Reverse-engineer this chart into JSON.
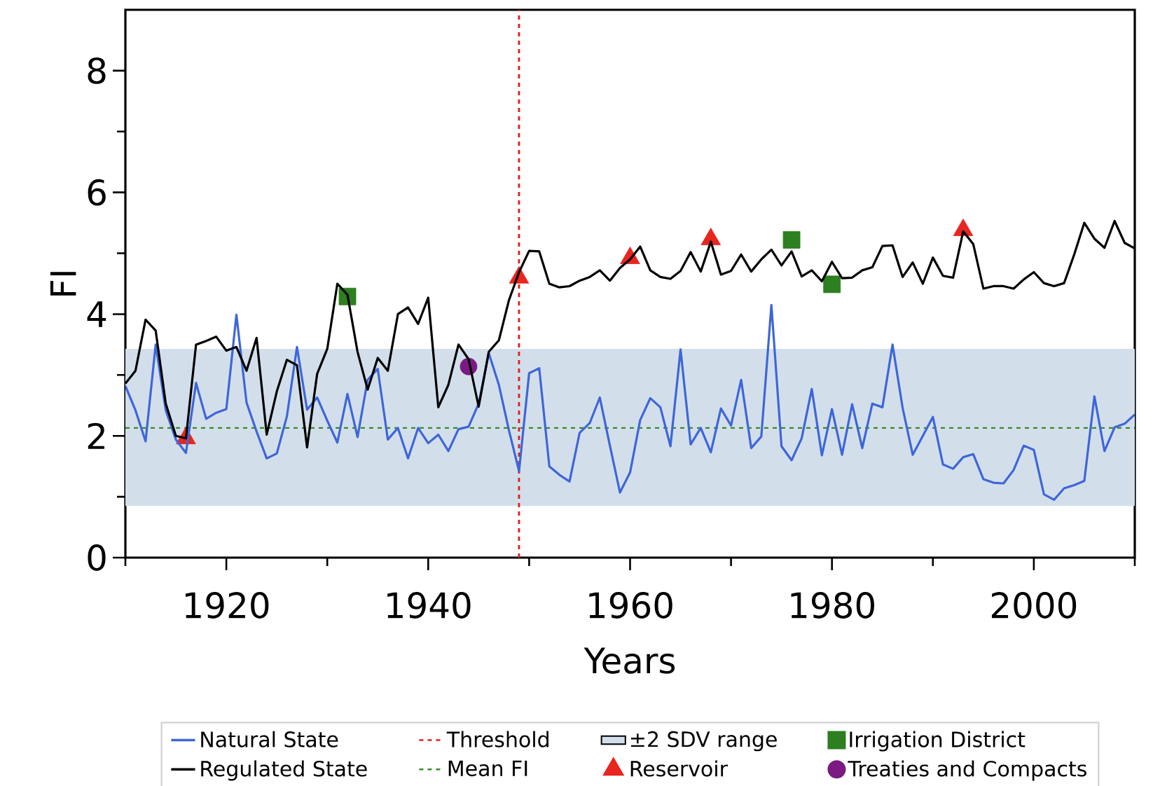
{
  "chart_data": {
    "type": "line",
    "xlabel": "Years",
    "ylabel": "FI",
    "xlim": [
      1910,
      2010
    ],
    "ylim": [
      0,
      9
    ],
    "xticks": [
      {
        "value": 1910,
        "label": null
      },
      1920,
      {
        "value": 1930,
        "label": null
      },
      1940,
      {
        "value": 1950,
        "label": null
      },
      1960,
      {
        "value": 1970,
        "label": null
      },
      1980,
      {
        "value": 1990,
        "label": null
      },
      2000,
      {
        "value": 2010,
        "label": null
      }
    ],
    "yticks": [
      0,
      {
        "value": 1,
        "label": null
      },
      2,
      {
        "value": 3,
        "label": null
      },
      4,
      {
        "value": 5,
        "label": null
      },
      6,
      {
        "value": 7,
        "label": null
      },
      8
    ],
    "x": [
      1910,
      1911,
      1912,
      1913,
      1914,
      1915,
      1916,
      1917,
      1918,
      1919,
      1920,
      1921,
      1922,
      1923,
      1924,
      1925,
      1926,
      1927,
      1928,
      1929,
      1930,
      1931,
      1932,
      1933,
      1934,
      1935,
      1936,
      1937,
      1938,
      1939,
      1940,
      1941,
      1942,
      1943,
      1944,
      1945,
      1946,
      1947,
      1948,
      1949,
      1950,
      1951,
      1952,
      1953,
      1954,
      1955,
      1956,
      1957,
      1958,
      1959,
      1960,
      1961,
      1962,
      1963,
      1964,
      1965,
      1966,
      1967,
      1968,
      1969,
      1970,
      1971,
      1972,
      1973,
      1974,
      1975,
      1976,
      1977,
      1978,
      1979,
      1980,
      1981,
      1982,
      1983,
      1984,
      1985,
      1986,
      1987,
      1988,
      1989,
      1990,
      1991,
      1992,
      1993,
      1994,
      1995,
      1996,
      1997,
      1998,
      1999,
      2000,
      2001,
      2002,
      2003,
      2004,
      2005,
      2006,
      2007,
      2008,
      2009,
      2010
    ],
    "series": [
      {
        "name": "Natural State",
        "color": "#3f66d8",
        "values": [
          2.82,
          2.42,
          1.91,
          3.5,
          2.42,
          1.94,
          1.72,
          2.87,
          2.28,
          2.38,
          2.44,
          3.99,
          2.55,
          2.07,
          1.63,
          1.71,
          2.32,
          3.46,
          2.43,
          2.63,
          2.25,
          1.89,
          2.69,
          1.98,
          2.92,
          3.1,
          1.94,
          2.13,
          1.63,
          2.13,
          1.88,
          2.02,
          1.75,
          2.11,
          2.15,
          2.53,
          3.36,
          2.84,
          2.09,
          1.42,
          3.03,
          3.11,
          1.5,
          1.36,
          1.25,
          2.05,
          2.21,
          2.63,
          1.84,
          1.07,
          1.4,
          2.26,
          2.62,
          2.47,
          1.83,
          3.42,
          1.86,
          2.13,
          1.73,
          2.45,
          2.17,
          2.92,
          1.8,
          1.99,
          4.15,
          1.83,
          1.6,
          1.96,
          2.77,
          1.68,
          2.44,
          1.69,
          2.52,
          1.8,
          2.53,
          2.47,
          3.5,
          2.46,
          1.69,
          2.0,
          2.31,
          1.53,
          1.46,
          1.65,
          1.7,
          1.29,
          1.23,
          1.22,
          1.44,
          1.84,
          1.77,
          1.04,
          0.95,
          1.14,
          1.19,
          1.26,
          2.65,
          1.75,
          2.14,
          2.2,
          2.35
        ]
      },
      {
        "name": "Regulated State",
        "color": "#000000",
        "values": [
          2.86,
          3.07,
          3.91,
          3.73,
          2.53,
          2.0,
          1.96,
          3.5,
          3.56,
          3.63,
          3.4,
          3.46,
          3.07,
          3.61,
          2.02,
          2.73,
          3.25,
          3.16,
          1.81,
          3.02,
          3.43,
          4.5,
          4.32,
          3.38,
          2.76,
          3.28,
          3.07,
          4.0,
          4.11,
          3.84,
          4.27,
          2.47,
          2.84,
          3.5,
          3.26,
          2.48,
          3.38,
          3.57,
          4.23,
          4.69,
          5.04,
          5.03,
          4.5,
          4.44,
          4.46,
          4.55,
          4.61,
          4.72,
          4.55,
          4.76,
          4.9,
          5.11,
          4.72,
          4.61,
          4.58,
          4.71,
          5.02,
          4.7,
          5.19,
          4.65,
          4.71,
          4.98,
          4.7,
          4.9,
          5.06,
          4.8,
          5.03,
          4.62,
          4.72,
          4.54,
          4.86,
          4.59,
          4.6,
          4.72,
          4.77,
          5.12,
          5.13,
          4.61,
          4.85,
          4.5,
          4.93,
          4.63,
          4.6,
          5.36,
          5.15,
          4.42,
          4.46,
          4.46,
          4.42,
          4.57,
          4.69,
          4.51,
          4.46,
          4.51,
          4.98,
          5.5,
          5.24,
          5.09,
          5.53,
          5.17,
          5.08
        ]
      },
      {
        "name": "Reservoir",
        "type": "scatter",
        "marker": "triangle",
        "color": "#e8251f",
        "x": [
          1916,
          1949,
          1960,
          1968,
          1993
        ],
        "values": [
          1.96,
          4.6,
          4.92,
          5.23,
          5.38
        ]
      },
      {
        "name": "Irrigation District",
        "type": "scatter",
        "marker": "square",
        "color": "#2d7f1f",
        "x": [
          1932,
          1976,
          1980
        ],
        "values": [
          4.29,
          5.22,
          4.49
        ]
      },
      {
        "name": "Treaties and Compacts",
        "type": "scatter",
        "marker": "circle",
        "color": "#7a1a82",
        "x": [
          1944
        ],
        "values": [
          3.14
        ]
      }
    ],
    "ref_lines": [
      {
        "axis": "x",
        "value": 1949,
        "label": "Threshold",
        "color": "#e02020",
        "line_style": "dashed"
      },
      {
        "axis": "y",
        "value": 2.13,
        "label": "Mean FI",
        "color": "#3a8a2a",
        "line_style": "dashed"
      }
    ],
    "bands": [
      {
        "axis": "y",
        "from": 0.85,
        "to": 3.43,
        "label": "±2 SDV range",
        "color": "#d2dfeb"
      }
    ],
    "marker": "none",
    "line_style": "solid",
    "grid": false,
    "legend": "bottom"
  }
}
